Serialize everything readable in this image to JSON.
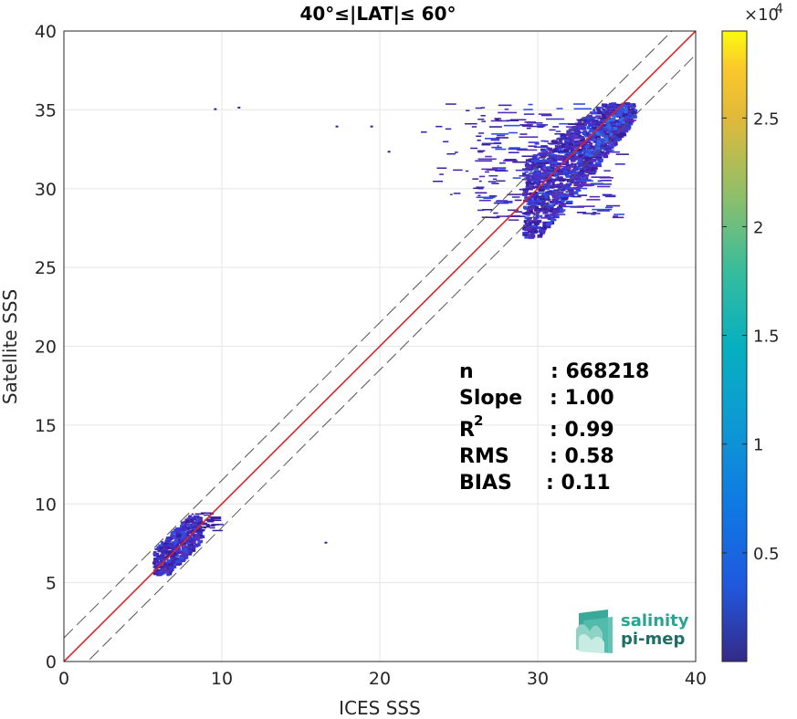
{
  "chart_data": {
    "type": "heatmap",
    "title": "40°≤|LAT|≤ 60°",
    "xlabel": "ICES SSS",
    "ylabel": "Satellite SSS",
    "xlim": [
      0,
      40
    ],
    "ylim": [
      0,
      40
    ],
    "xticks": [
      "0",
      "10",
      "20",
      "30",
      "40"
    ],
    "yticks": [
      "0",
      "5",
      "10",
      "15",
      "20",
      "25",
      "30",
      "35",
      "40"
    ],
    "grid": true,
    "colorbar": {
      "scale_label": "×10",
      "scale_exponent": "4",
      "range": [
        0,
        29000
      ],
      "ticks": [
        "0.5",
        "1",
        "1.5",
        "2",
        "2.5"
      ],
      "tick_values": [
        5000,
        10000,
        15000,
        20000,
        25000
      ],
      "colormap": "parula"
    },
    "reference_lines": [
      {
        "kind": "identity",
        "color": "#d62728",
        "intercept": 0
      },
      {
        "kind": "offset",
        "color": "#555555",
        "intercept": 1.5,
        "style": "dashed"
      },
      {
        "kind": "offset",
        "color": "#555555",
        "intercept": -1.5,
        "style": "dashed"
      }
    ],
    "density_clusters": [
      {
        "name": "low",
        "x_range": [
          5.5,
          9.5
        ],
        "y_range": [
          5.5,
          9.7
        ]
      },
      {
        "name": "high",
        "x_range": [
          22.5,
          36
        ],
        "y_range": [
          27,
          35.5
        ]
      }
    ],
    "stats": [
      {
        "label": "n",
        "value": ": 668218"
      },
      {
        "label": "Slope",
        "value": ": 1.00"
      },
      {
        "label": "R",
        "sup": "2",
        "value": ": 0.99"
      },
      {
        "label": "RMS",
        "value": ": 0.58"
      },
      {
        "label": "BIAS",
        "value": ": 0.11"
      }
    ]
  },
  "logo": {
    "line1": "salinity",
    "line2": "pi-mep"
  }
}
